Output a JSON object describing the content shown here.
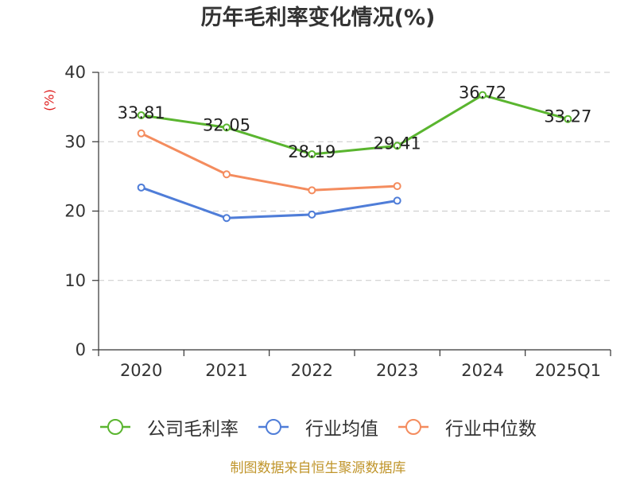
{
  "chart_data": {
    "type": "line",
    "title": "历年毛利率变化情况(%)",
    "xlabel": "",
    "ylabel": "(%)",
    "ylim": [
      0,
      40
    ],
    "yticks": [
      0,
      10,
      20,
      30,
      40
    ],
    "grid": true,
    "legend": "bottom",
    "categories": [
      "2020",
      "2021",
      "2022",
      "2023",
      "2024",
      "2025Q1"
    ],
    "series": [
      {
        "name": "公司毛利率",
        "color": "#5ab52f",
        "show_labels": true,
        "values": [
          33.81,
          32.05,
          28.19,
          29.41,
          36.72,
          33.27
        ]
      },
      {
        "name": "行业均值",
        "color": "#4f7dd8",
        "show_labels": false,
        "values": [
          23.4,
          19.0,
          19.5,
          21.5,
          null,
          null
        ]
      },
      {
        "name": "行业中位数",
        "color": "#f48c5e",
        "show_labels": false,
        "values": [
          31.2,
          25.3,
          23.0,
          23.6,
          null,
          null
        ]
      }
    ]
  },
  "footer": {
    "source": "制图数据来自恒生聚源数据库"
  },
  "colors": {
    "ylabel": "#e02020",
    "footer": "#c0952b",
    "axis": "#333333",
    "grid": "#c8c8c8"
  }
}
